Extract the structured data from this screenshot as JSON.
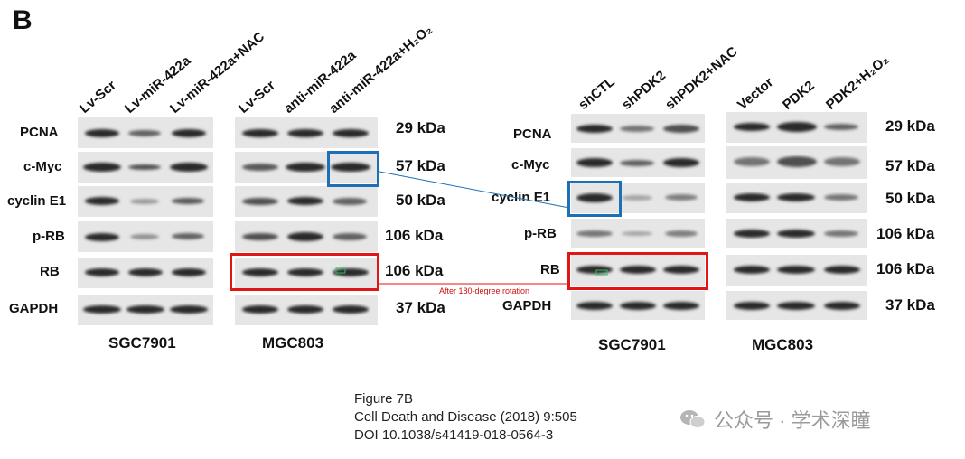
{
  "panel_letter": "B",
  "left_figure": {
    "lanes_sgc": [
      "Lv-Scr",
      "Lv-miR-422a",
      "Lv-miR-422a+NAC"
    ],
    "lanes_mgc": [
      "Lv-Scr",
      "anti-miR-422a",
      "anti-miR-422a+H₂O₂"
    ],
    "rows": [
      "PCNA",
      "c-Myc",
      "cyclin E1",
      "p-RB",
      "RB",
      "GAPDH"
    ],
    "kda": [
      "29 kDa",
      "57 kDa",
      "50 kDa",
      "106 kDa",
      "106 kDa",
      "37 kDa"
    ],
    "cell_lines": [
      "SGC7901",
      "MGC803"
    ]
  },
  "right_figure": {
    "lanes_sgc": [
      "shCTL",
      "shPDK2",
      "shPDK2+NAC"
    ],
    "lanes_mgc": [
      "Vector",
      "PDK2",
      "PDK2+H₂O₂"
    ],
    "rows": [
      "PCNA",
      "c-Myc",
      "cyclin E1",
      "p-RB",
      "RB",
      "GAPDH"
    ],
    "kda": [
      "29 kDa",
      "57 kDa",
      "50 kDa",
      "106 kDa",
      "106 kDa",
      "37 kDa"
    ],
    "cell_lines": [
      "SGC7901",
      "MGC803"
    ]
  },
  "annotation": "After 180-degree rotation",
  "caption": {
    "line1": "Figure 7B",
    "line2": "Cell Death and Disease (2018) 9:505",
    "line3": "DOI 10.1038/s41419-018-0564-3"
  },
  "watermark": "公众号 · 学术深瞳",
  "colors": {
    "highlight_blue": "#1f6fb4",
    "highlight_red": "#e01515"
  }
}
